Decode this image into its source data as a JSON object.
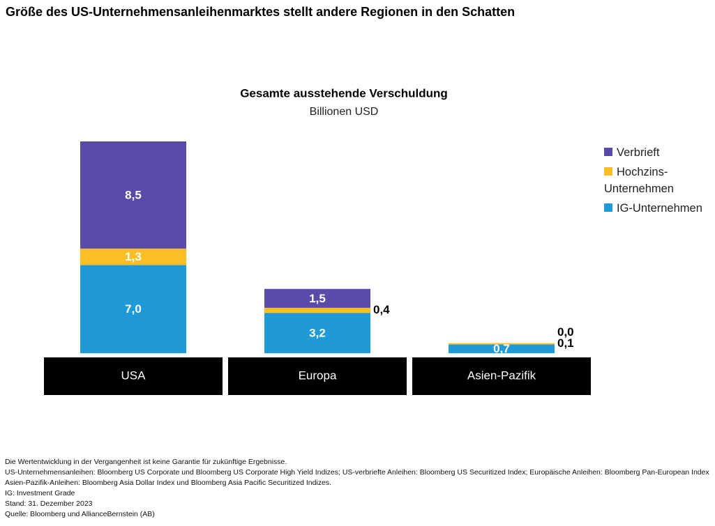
{
  "header": {
    "title": "Größe des US-Unternehmensanleihenmarktes stellt andere Regionen in den Schatten"
  },
  "chart_data": {
    "type": "bar",
    "stacked": true,
    "title": "Gesamte ausstehende Verschuldung",
    "subtitle": "Billionen USD",
    "categories": [
      "USA",
      "Europa",
      "Asien-Pazifik"
    ],
    "series": [
      {
        "name": "IG-Unternehmen",
        "color": "#1f9ad6",
        "values": [
          7.0,
          3.2,
          0.7
        ],
        "value_labels": [
          "7,0",
          "3,2",
          "0,7"
        ]
      },
      {
        "name": "Hochzins-Unternehmen",
        "color": "#fbbf24",
        "values": [
          1.3,
          0.4,
          0.1
        ],
        "value_labels": [
          "1,3",
          "0,4",
          "0,1"
        ]
      },
      {
        "name": "Verbrieft",
        "color": "#5b4aa8",
        "values": [
          8.5,
          1.5,
          0.0
        ],
        "value_labels": [
          "8,5",
          "1,5",
          "0,0"
        ]
      }
    ]
  },
  "notes": [
    "Die Wertentwicklung in der Vergangenheit ist keine Garantie für zukünftige Ergebnisse.",
    "US-Unternehmensanleihen: Bloomberg US Corporate und Bloomberg US Corporate High Yield Indizes; US-verbriefte Anleihen: Bloomberg US Securitized Index; Europäische Anleihen: Bloomberg Pan-European Index",
    "Asien-Pazifik-Anleihen: Bloomberg Asia Dollar Index und Bloomberg Asia Pacific Securitized Indizes.",
    "IG: Investment Grade",
    "Stand: 31. Dezember 2023",
    "Quelle: Bloomberg und AllianceBernstein (AB)"
  ]
}
